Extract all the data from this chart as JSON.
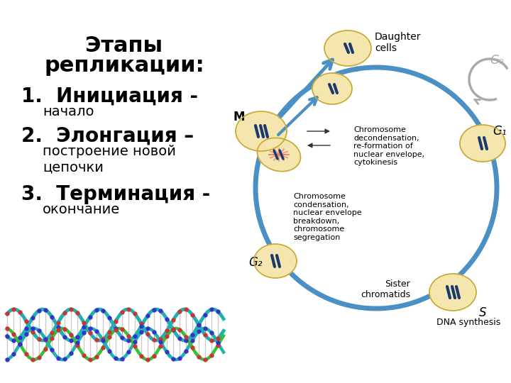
{
  "title_line1": "Этапы",
  "title_line2": "репликации:",
  "item1_main": "1.  Инициация -",
  "item1_sub": "начало",
  "item2_main": "2.  Элонгация –",
  "item2_sub": "построение новой\nцепочки",
  "item3_main": "3.  Терминация -",
  "item3_sub": "окончание",
  "bg_color": "#ffffff",
  "text_color": "#000000",
  "title_fontsize": 22,
  "main_fontsize": 20,
  "sub_fontsize": 14,
  "label_M": "M",
  "label_G0": "G₀",
  "label_G1": "G₁",
  "label_G2": "G₂",
  "label_S": "S",
  "label_daughter": "Daughter\ncells",
  "label_dna": "DNA synthesis",
  "label_sister": "Sister\nchromatids",
  "label_chrom_cond": "Chromosome\ncondensation,\nnuclear envelope\nbreakdown,\nchromosome\nsegregation",
  "label_chrom_decond": "Chromosome\ndecondensation,\nre-formation of\nnuclear envelope,\ncytokinesis",
  "cell_color": "#f5e6b0",
  "arrow_color": "#4a90c4",
  "chromosome_color": "#1a3a6e",
  "g0_color": "#aaaaaa"
}
